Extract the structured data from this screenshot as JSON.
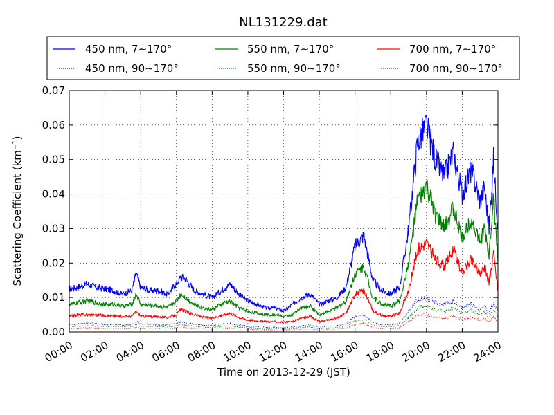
{
  "chart_data": {
    "type": "line",
    "title": "NL131229.dat",
    "xlabel": "Time on 2013-12-29 (JST)",
    "ylabel_main": "Scattering Coefficient (km",
    "ylabel_sup": "−1",
    "ylabel_tail": ")",
    "xlim": [
      "00:00",
      "24:00"
    ],
    "ylim": [
      0,
      0.07
    ],
    "grid": true,
    "legend_position": "top",
    "x_ticks": [
      "00:00",
      "02:00",
      "04:00",
      "06:00",
      "08:00",
      "10:00",
      "12:00",
      "14:00",
      "16:00",
      "18:00",
      "20:00",
      "22:00",
      "24:00"
    ],
    "y_ticks": [
      "0.00",
      "0.01",
      "0.02",
      "0.03",
      "0.04",
      "0.05",
      "0.06",
      "0.07"
    ],
    "x_hours": [
      0,
      0.5,
      1,
      1.5,
      2,
      2.5,
      3,
      3.5,
      3.75,
      4,
      4.5,
      5,
      5.5,
      6,
      6.25,
      6.5,
      7,
      7.5,
      8,
      8.5,
      9,
      9.5,
      10,
      10.5,
      11,
      11.5,
      12,
      12.5,
      13,
      13.5,
      14,
      14.5,
      15,
      15.5,
      16,
      16.5,
      17,
      17.5,
      18,
      18.5,
      19,
      19.5,
      20,
      20.5,
      21,
      21.5,
      22,
      22.5,
      23,
      23.25,
      23.5,
      23.75,
      24
    ],
    "series": [
      {
        "name": "450 nm, 7∼170°",
        "color": "#0000ff",
        "style": "solid",
        "values": [
          0.0125,
          0.013,
          0.014,
          0.013,
          0.0125,
          0.012,
          0.011,
          0.012,
          0.017,
          0.013,
          0.012,
          0.012,
          0.011,
          0.014,
          0.016,
          0.0155,
          0.012,
          0.011,
          0.01,
          0.012,
          0.014,
          0.011,
          0.009,
          0.008,
          0.007,
          0.007,
          0.006,
          0.008,
          0.01,
          0.011,
          0.008,
          0.009,
          0.01,
          0.013,
          0.025,
          0.028,
          0.015,
          0.012,
          0.011,
          0.013,
          0.03,
          0.055,
          0.06,
          0.05,
          0.045,
          0.052,
          0.04,
          0.047,
          0.038,
          0.042,
          0.03,
          0.05,
          0.03
        ]
      },
      {
        "name": "550 nm, 7∼170°",
        "color": "#008000",
        "style": "solid",
        "values": [
          0.008,
          0.0085,
          0.009,
          0.0085,
          0.008,
          0.008,
          0.0075,
          0.008,
          0.011,
          0.008,
          0.0078,
          0.0075,
          0.007,
          0.009,
          0.011,
          0.01,
          0.008,
          0.007,
          0.0065,
          0.008,
          0.009,
          0.007,
          0.006,
          0.0055,
          0.005,
          0.005,
          0.0045,
          0.005,
          0.007,
          0.0075,
          0.005,
          0.006,
          0.007,
          0.009,
          0.017,
          0.019,
          0.01,
          0.008,
          0.0075,
          0.009,
          0.02,
          0.038,
          0.042,
          0.034,
          0.03,
          0.036,
          0.027,
          0.033,
          0.026,
          0.03,
          0.022,
          0.04,
          0.02
        ]
      },
      {
        "name": "700 nm, 7∼170°",
        "color": "#ff0000",
        "style": "solid",
        "values": [
          0.0045,
          0.005,
          0.005,
          0.005,
          0.0048,
          0.0046,
          0.0045,
          0.0046,
          0.006,
          0.0046,
          0.0045,
          0.0044,
          0.0042,
          0.005,
          0.0065,
          0.006,
          0.005,
          0.0043,
          0.004,
          0.0048,
          0.0055,
          0.0042,
          0.0035,
          0.0032,
          0.003,
          0.003,
          0.0028,
          0.003,
          0.004,
          0.0045,
          0.003,
          0.0035,
          0.004,
          0.0055,
          0.011,
          0.012,
          0.0062,
          0.0048,
          0.0045,
          0.0055,
          0.012,
          0.024,
          0.026,
          0.021,
          0.019,
          0.024,
          0.017,
          0.021,
          0.017,
          0.019,
          0.014,
          0.023,
          0.012
        ]
      },
      {
        "name": "450 nm, 90∼170°",
        "color": "#0000ff",
        "style": "dotted",
        "values": [
          0.0022,
          0.0024,
          0.0025,
          0.0024,
          0.0022,
          0.0022,
          0.002,
          0.0022,
          0.003,
          0.0023,
          0.0022,
          0.0021,
          0.002,
          0.0025,
          0.003,
          0.0028,
          0.0022,
          0.002,
          0.0018,
          0.0022,
          0.0025,
          0.002,
          0.0016,
          0.0015,
          0.0013,
          0.0013,
          0.0012,
          0.0014,
          0.0018,
          0.002,
          0.0014,
          0.0016,
          0.0018,
          0.0024,
          0.0045,
          0.005,
          0.0028,
          0.0022,
          0.002,
          0.0025,
          0.006,
          0.0095,
          0.0098,
          0.0085,
          0.008,
          0.009,
          0.007,
          0.0082,
          0.0065,
          0.0075,
          0.0055,
          0.0085,
          0.006
        ]
      },
      {
        "name": "550 nm, 90∼170°",
        "color": "#008000",
        "style": "dotted",
        "values": [
          0.0016,
          0.0017,
          0.0018,
          0.0017,
          0.0016,
          0.0016,
          0.0015,
          0.0016,
          0.0022,
          0.0016,
          0.0016,
          0.0015,
          0.0014,
          0.0018,
          0.0022,
          0.002,
          0.0016,
          0.0014,
          0.0013,
          0.0016,
          0.0018,
          0.0014,
          0.0012,
          0.0011,
          0.001,
          0.001,
          0.0009,
          0.001,
          0.0013,
          0.0014,
          0.001,
          0.0012,
          0.0013,
          0.0017,
          0.0032,
          0.0036,
          0.002,
          0.0016,
          0.0015,
          0.0018,
          0.0042,
          0.0072,
          0.0075,
          0.0064,
          0.006,
          0.0068,
          0.0054,
          0.0062,
          0.005,
          0.0057,
          0.0042,
          0.0065,
          0.0045
        ]
      },
      {
        "name": "700 nm, 90∼170°",
        "color": "#ff0000",
        "style": "dotted",
        "values": [
          0.001,
          0.0011,
          0.0012,
          0.0011,
          0.001,
          0.001,
          0.001,
          0.001,
          0.0014,
          0.001,
          0.001,
          0.001,
          0.0009,
          0.0012,
          0.0015,
          0.0013,
          0.001,
          0.0009,
          0.0008,
          0.001,
          0.0012,
          0.0009,
          0.0008,
          0.0007,
          0.0006,
          0.0006,
          0.0006,
          0.0007,
          0.0008,
          0.0009,
          0.0007,
          0.0008,
          0.0009,
          0.0011,
          0.0022,
          0.0025,
          0.0013,
          0.001,
          0.001,
          0.0012,
          0.003,
          0.0048,
          0.005,
          0.0043,
          0.004,
          0.0046,
          0.0036,
          0.0042,
          0.0034,
          0.0039,
          0.0029,
          0.0045,
          0.003
        ]
      }
    ]
  }
}
